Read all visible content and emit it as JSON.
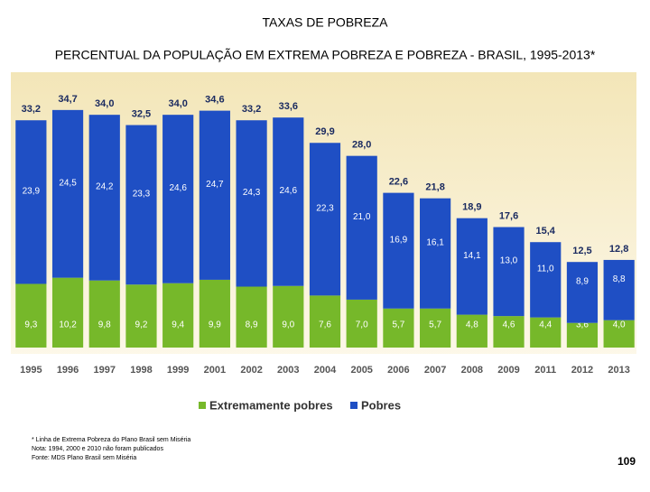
{
  "header": {
    "title": "TAXAS DE POBREZA",
    "subtitle": "PERCENTUAL DA POPULAÇÃO EM EXTREMA POBREZA E POBREZA - BRASIL, 1995-2013*"
  },
  "chart_data": {
    "type": "stacked-bar",
    "categories": [
      "1995",
      "1996",
      "1997",
      "1998",
      "1999",
      "2001",
      "2002",
      "2003",
      "2004",
      "2005",
      "2006",
      "2007",
      "2008",
      "2009",
      "2011",
      "2012",
      "2013"
    ],
    "ylim": [
      0,
      36
    ],
    "series": [
      {
        "name": "Extremamente pobres",
        "color": "#76b82a",
        "values": [
          9.3,
          10.2,
          9.8,
          9.2,
          9.4,
          9.9,
          8.9,
          9.0,
          7.6,
          7.0,
          5.7,
          5.7,
          4.8,
          4.6,
          4.4,
          3.6,
          4.0
        ],
        "value_labels": [
          "9,3",
          "10,2",
          "9,8",
          "9,2",
          "9,4",
          "9,9",
          "8,9",
          "9,0",
          "7,6",
          "7,0",
          "5,7",
          "5,7",
          "4,8",
          "4,6",
          "4,4",
          "3,6",
          "4,0"
        ]
      },
      {
        "name": "Pobres",
        "color": "#1f4fc4",
        "values": [
          23.9,
          24.5,
          24.2,
          23.3,
          24.6,
          24.7,
          24.3,
          24.6,
          22.3,
          21.0,
          16.9,
          16.1,
          14.1,
          13.0,
          11.0,
          8.9,
          8.8
        ],
        "value_labels": [
          "23,9",
          "24,5",
          "24,2",
          "23,3",
          "24,6",
          "24,7",
          "24,3",
          "24,6",
          "22,3",
          "21,0",
          "16,9",
          "16,1",
          "14,1",
          "13,0",
          "11,0",
          "8,9",
          "8,8"
        ]
      }
    ],
    "totals": {
      "values": [
        33.2,
        34.7,
        34.0,
        32.5,
        34.0,
        34.6,
        33.2,
        33.6,
        29.9,
        28.0,
        22.6,
        21.8,
        18.9,
        17.6,
        15.4,
        12.5,
        12.8
      ],
      "value_labels": [
        "33,2",
        "34,7",
        "34,0",
        "32,5",
        "34,0",
        "34,6",
        "33,2",
        "33,6",
        "29,9",
        "28,0",
        "22,6",
        "21,8",
        "18,9",
        "17,6",
        "15,4",
        "12,5",
        "12,8"
      ]
    }
  },
  "footer": {
    "notes": [
      "* Linha de Extrema Pobreza do Plano Brasil sem Miséria",
      "Nota: 1994, 2000 e 2010 não foram publicados",
      "Fonte: MDS Plano Brasil sem Miséria"
    ],
    "page": "109"
  }
}
